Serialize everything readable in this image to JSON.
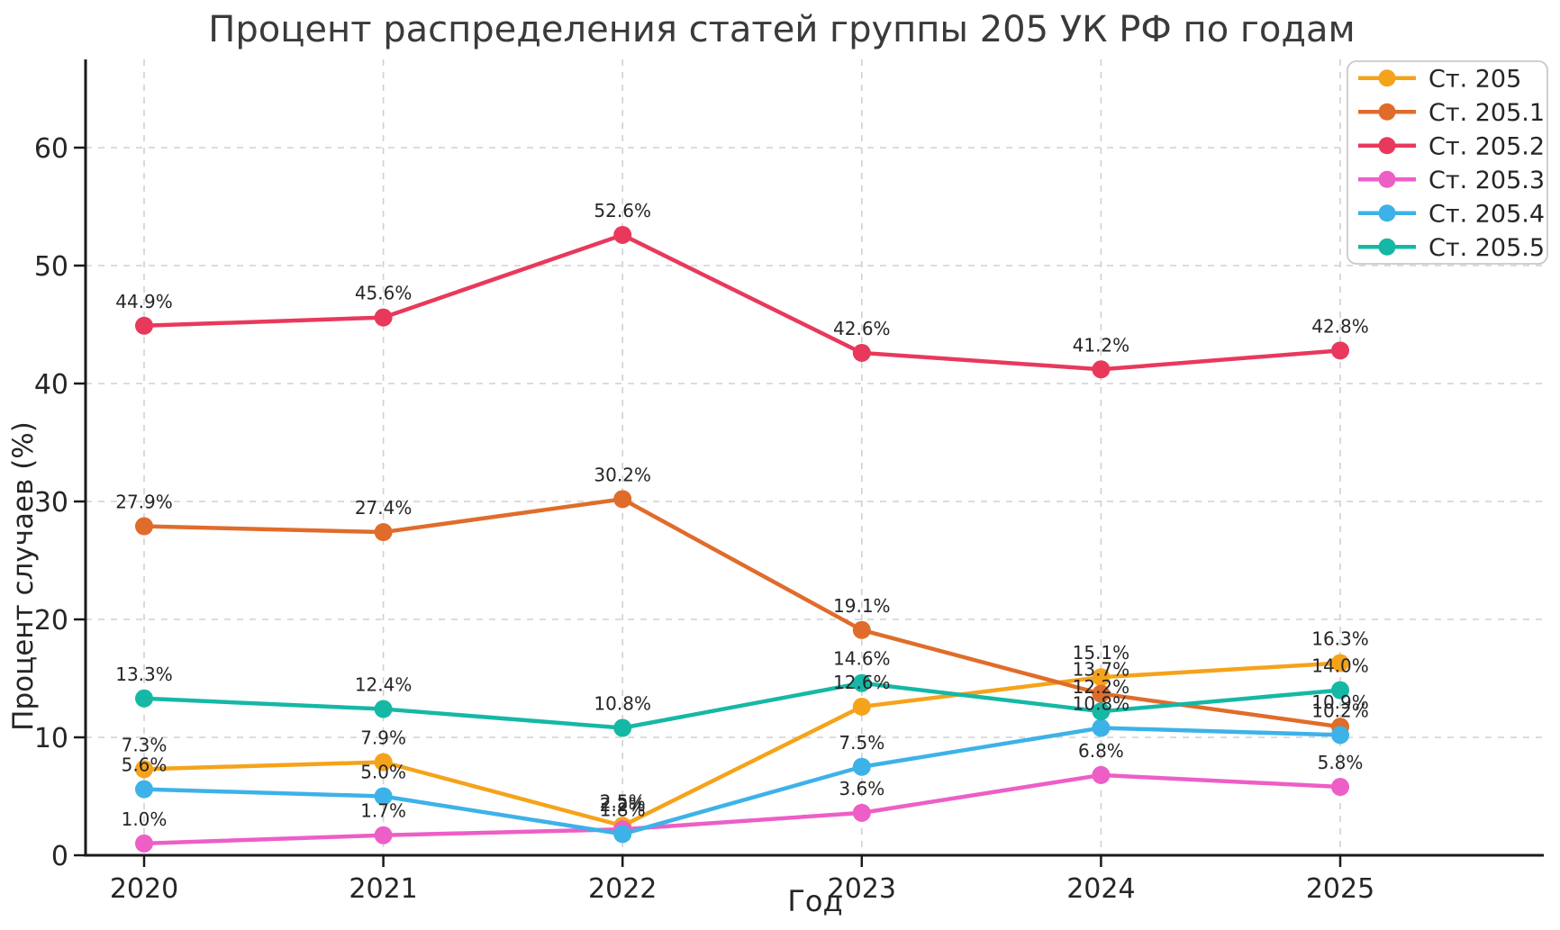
{
  "chart_data": {
    "type": "line",
    "title": "Процент распределения статей группы 205 УК РФ по годам",
    "xlabel": "Год",
    "ylabel": "Процент случаев (%)",
    "categories": [
      "2020",
      "2021",
      "2022",
      "2023",
      "2024",
      "2025"
    ],
    "yticks": [
      0,
      10,
      20,
      30,
      40,
      50,
      60
    ],
    "ylim": [
      0,
      67.5
    ],
    "grid": true,
    "grid_style": "dashed",
    "legend_position": "upper right",
    "data_label_suffix": "%",
    "series": [
      {
        "name": "Ст. 205",
        "color": "#F5A31B",
        "values": [
          7.3,
          7.9,
          2.5,
          12.6,
          15.1,
          16.3
        ]
      },
      {
        "name": "Ст. 205.1",
        "color": "#E06C2B",
        "values": [
          27.9,
          27.4,
          30.2,
          19.1,
          13.7,
          10.9
        ]
      },
      {
        "name": "Ст. 205.2",
        "color": "#E8395C",
        "values": [
          44.9,
          45.6,
          52.6,
          42.6,
          41.2,
          42.8
        ]
      },
      {
        "name": "Ст. 205.3",
        "color": "#ED5EC6",
        "values": [
          1.0,
          1.7,
          2.2,
          3.6,
          6.8,
          5.8
        ]
      },
      {
        "name": "Ст. 205.4",
        "color": "#3DB2E8",
        "values": [
          5.6,
          5.0,
          1.8,
          7.5,
          10.8,
          10.2
        ]
      },
      {
        "name": "Ст. 205.5",
        "color": "#15B8A5",
        "values": [
          13.3,
          12.4,
          10.8,
          14.6,
          12.2,
          14.0
        ]
      }
    ],
    "colors": {
      "background": "#ffffff",
      "gridline": "#d0d0d0",
      "spine": "#1a1a1a",
      "tick_label": "#262626",
      "data_label": "#3d3d3d",
      "legend_border": "#c9c9c9",
      "legend_text": "#1a1a1a"
    }
  }
}
